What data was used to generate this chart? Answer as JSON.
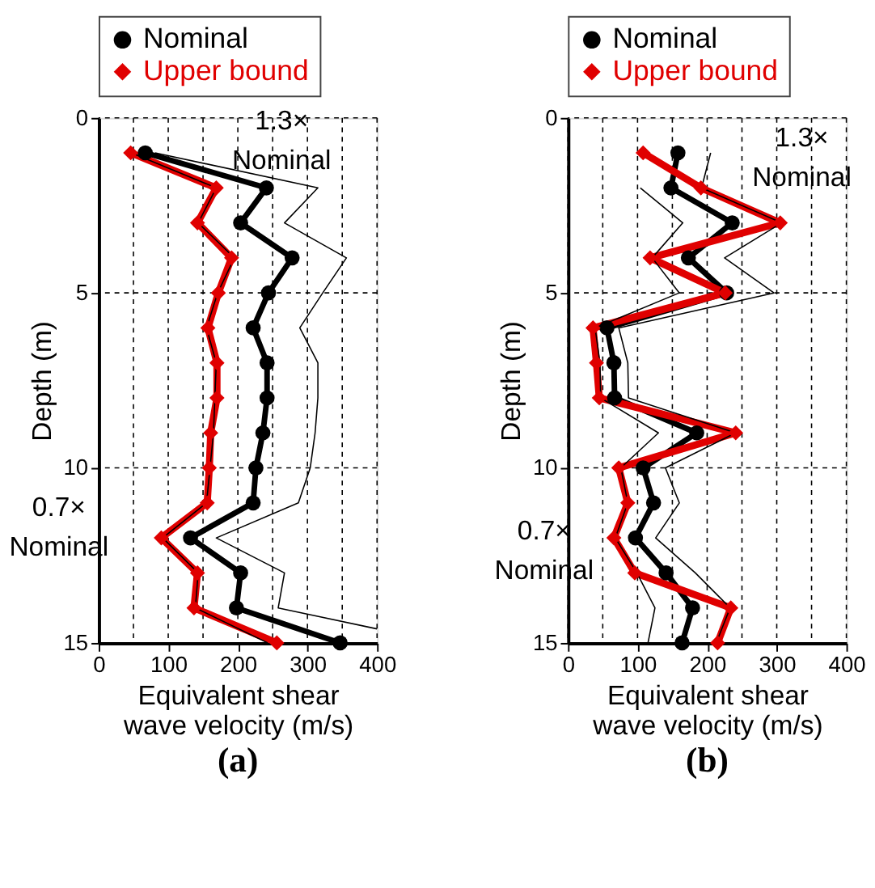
{
  "chart_data": [
    {
      "type": "line",
      "title": "(a)",
      "xlabel": "Equivalent shear\nwave velocity (m/s)",
      "ylabel": "Depth (m)",
      "xlim": [
        0,
        400
      ],
      "ylim": [
        15,
        0
      ],
      "xticks": [
        0,
        {
          "value": 50,
          "label": null
        },
        100,
        {
          "value": 150,
          "label": null
        },
        200,
        {
          "value": 250,
          "label": null
        },
        300,
        {
          "value": 350,
          "label": null
        },
        400
      ],
      "yticks": [
        0,
        5,
        10,
        15
      ],
      "grid": true,
      "legend": "top",
      "line_style": "solid",
      "series": [
        {
          "name": "Nominal",
          "color": "#000000",
          "marker": "circle",
          "x": [
            67,
            241,
            204,
            278,
            244,
            222,
            242,
            242,
            236,
            226,
            222,
            132,
            204,
            198,
            347
          ],
          "values": [
            1,
            2,
            3,
            4,
            5,
            6,
            7,
            8,
            9,
            10,
            11,
            12,
            13,
            14,
            15
          ]
        },
        {
          "name": "Upper bound",
          "color": "#e00000",
          "marker": "diamond",
          "x": [
            46,
            169,
            142,
            191,
            172,
            157,
            170,
            170,
            161,
            159,
            156,
            90,
            142,
            137,
            256
          ],
          "values": [
            1,
            2,
            3,
            4,
            5,
            6,
            7,
            8,
            9,
            10,
            11,
            12,
            13,
            14,
            15
          ]
        },
        {
          "color": "#000000",
          "marker": "none",
          "x": [
            81,
            315,
            267,
            356,
            322,
            289,
            315,
            315,
            311,
            304,
            287,
            169,
            267,
            258,
            400
          ],
          "values": [
            1,
            2,
            3,
            4,
            5,
            6,
            7,
            8,
            9,
            10,
            11,
            12,
            13,
            14,
            14.6
          ]
        },
        {
          "color": "#000000",
          "marker": "none",
          "x": [
            47,
            169,
            143,
            195,
            171,
            155,
            169,
            null,
            165,
            null,
            155,
            92,
            143,
            139,
            243
          ],
          "values": [
            1,
            2,
            3,
            4,
            5,
            6,
            7,
            null,
            9,
            null,
            11,
            12,
            13,
            14,
            15
          ]
        }
      ],
      "annotations": [
        "1.3×\nNominal",
        "0.7×\nNominal"
      ]
    },
    {
      "type": "line",
      "title": "(b)",
      "xlabel": "Equivalent shear\nwave velocity (m/s)",
      "ylabel": "Depth (m)",
      "xlim": [
        0,
        400
      ],
      "ylim": [
        15,
        0
      ],
      "xticks": [
        0,
        {
          "value": 50,
          "label": null
        },
        100,
        {
          "value": 150,
          "label": null
        },
        200,
        {
          "value": 250,
          "label": null
        },
        300,
        {
          "value": 350,
          "label": null
        },
        400
      ],
      "yticks": [
        0,
        5,
        10,
        15
      ],
      "grid": true,
      "legend": "top",
      "line_style": "solid",
      "series": [
        {
          "name": "Nominal",
          "color": "#000000",
          "marker": "circle",
          "x": [
            158,
            148,
            236,
            173,
            228,
            56,
            66,
            67,
            185,
            108,
            123,
            97,
            141,
            179,
            164
          ],
          "values": [
            1,
            2,
            3,
            4,
            5,
            6,
            7,
            8,
            9,
            10,
            11,
            12,
            13,
            14,
            15
          ]
        },
        {
          "name": "Upper bound",
          "color": "#e00000",
          "marker": "diamond",
          "x": [
            108,
            191,
            305,
            118,
            226,
            36,
            41,
            45,
            241,
            73,
            86,
            66,
            96,
            234,
            215
          ],
          "values": [
            1,
            2,
            3,
            4,
            5,
            6,
            7,
            8,
            9,
            10,
            11,
            12,
            13,
            14,
            15
          ]
        },
        {
          "color": "#000000",
          "marker": "none",
          "x": [
            205,
            192,
            307,
            225,
            296,
            73,
            86,
            87,
            241,
            140,
            160,
            126,
            183,
            233,
            213
          ],
          "values": [
            1,
            2,
            3,
            4,
            5,
            6,
            7,
            8,
            9,
            10,
            11,
            12,
            13,
            14,
            15
          ]
        },
        {
          "color": "#000000",
          "marker": "none",
          "x": [
            null,
            104,
            165,
            121,
            160,
            39,
            46,
            47,
            130,
            76,
            86,
            68,
            99,
            125,
            115
          ],
          "values": [
            null,
            2,
            3,
            4,
            5,
            6,
            7,
            8,
            9,
            10,
            11,
            12,
            13,
            14,
            15
          ]
        }
      ],
      "annotations": [
        "1.3×\nNominal",
        "0.7×\nNominal"
      ]
    }
  ]
}
